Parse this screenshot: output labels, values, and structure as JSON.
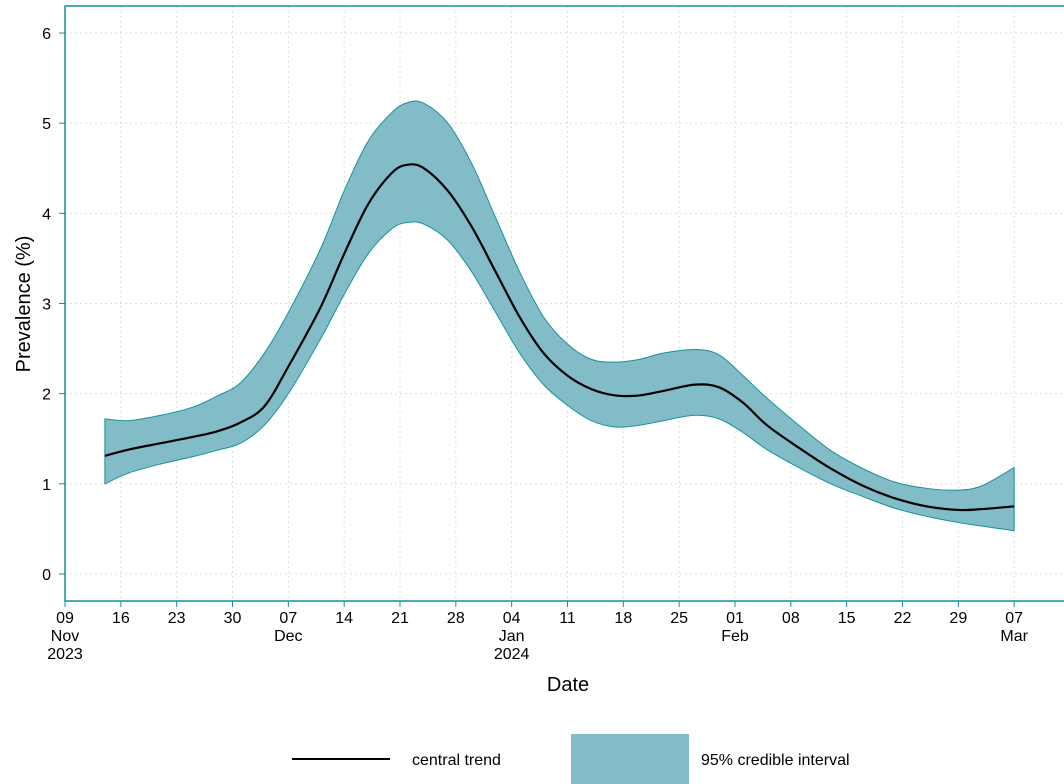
{
  "chart_data": {
    "type": "area",
    "xlabel": "Date",
    "ylabel": "Prevalence (%)",
    "ylim": [
      -0.3,
      6.3
    ],
    "xlim": [
      "2023-11-09",
      "2024-03-14"
    ],
    "x_ticks": [
      {
        "date": "2023-11-09",
        "line1": "09",
        "line2": "Nov",
        "line3": "2023"
      },
      {
        "date": "2023-11-16",
        "line1": "16",
        "line2": "",
        "line3": ""
      },
      {
        "date": "2023-11-23",
        "line1": "23",
        "line2": "",
        "line3": ""
      },
      {
        "date": "2023-11-30",
        "line1": "30",
        "line2": "",
        "line3": ""
      },
      {
        "date": "2023-12-07",
        "line1": "07",
        "line2": "Dec",
        "line3": ""
      },
      {
        "date": "2023-12-14",
        "line1": "14",
        "line2": "",
        "line3": ""
      },
      {
        "date": "2023-12-21",
        "line1": "21",
        "line2": "",
        "line3": ""
      },
      {
        "date": "2023-12-28",
        "line1": "28",
        "line2": "",
        "line3": ""
      },
      {
        "date": "2024-01-04",
        "line1": "04",
        "line2": "Jan",
        "line3": "2024"
      },
      {
        "date": "2024-01-11",
        "line1": "11",
        "line2": "",
        "line3": ""
      },
      {
        "date": "2024-01-18",
        "line1": "18",
        "line2": "",
        "line3": ""
      },
      {
        "date": "2024-01-25",
        "line1": "25",
        "line2": "",
        "line3": ""
      },
      {
        "date": "2024-02-01",
        "line1": "01",
        "line2": "Feb",
        "line3": ""
      },
      {
        "date": "2024-02-08",
        "line1": "08",
        "line2": "",
        "line3": ""
      },
      {
        "date": "2024-02-15",
        "line1": "15",
        "line2": "",
        "line3": ""
      },
      {
        "date": "2024-02-22",
        "line1": "22",
        "line2": "",
        "line3": ""
      },
      {
        "date": "2024-02-29",
        "line1": "29",
        "line2": "",
        "line3": ""
      },
      {
        "date": "2024-03-07",
        "line1": "07",
        "line2": "Mar",
        "line3": ""
      }
    ],
    "y_ticks": [
      0,
      1,
      2,
      3,
      4,
      5,
      6
    ],
    "x": [
      "2023-11-14",
      "2023-11-17",
      "2023-11-21",
      "2023-11-25",
      "2023-11-28",
      "2023-12-01",
      "2023-12-04",
      "2023-12-07",
      "2023-12-11",
      "2023-12-14",
      "2023-12-17",
      "2023-12-20",
      "2023-12-22",
      "2023-12-24",
      "2023-12-27",
      "2023-12-30",
      "2024-01-02",
      "2024-01-05",
      "2024-01-08",
      "2024-01-11",
      "2024-01-14",
      "2024-01-17",
      "2024-01-20",
      "2024-01-23",
      "2024-01-27",
      "2024-01-30",
      "2024-02-02",
      "2024-02-05",
      "2024-02-09",
      "2024-02-13",
      "2024-02-17",
      "2024-02-21",
      "2024-02-25",
      "2024-02-29",
      "2024-03-03",
      "2024-03-07"
    ],
    "series": [
      {
        "name": "central trend",
        "color": "#000000",
        "values": [
          1.31,
          1.38,
          1.45,
          1.52,
          1.58,
          1.68,
          1.86,
          2.3,
          2.95,
          3.55,
          4.1,
          4.45,
          4.54,
          4.5,
          4.25,
          3.85,
          3.35,
          2.85,
          2.45,
          2.2,
          2.05,
          1.98,
          1.98,
          2.03,
          2.1,
          2.07,
          1.9,
          1.65,
          1.4,
          1.17,
          0.98,
          0.84,
          0.75,
          0.71,
          0.72,
          0.75
        ]
      },
      {
        "name": "95% credible interval",
        "color": "#82bdc7",
        "edge_color": "#17909b",
        "lower": [
          1.0,
          1.12,
          1.22,
          1.3,
          1.37,
          1.45,
          1.65,
          2.0,
          2.6,
          3.1,
          3.55,
          3.83,
          3.9,
          3.88,
          3.7,
          3.35,
          2.9,
          2.45,
          2.1,
          1.87,
          1.7,
          1.63,
          1.65,
          1.7,
          1.76,
          1.72,
          1.57,
          1.38,
          1.18,
          1.0,
          0.86,
          0.73,
          0.64,
          0.57,
          0.53,
          0.48
        ],
        "upper": [
          1.72,
          1.7,
          1.76,
          1.85,
          1.97,
          2.12,
          2.45,
          2.9,
          3.6,
          4.25,
          4.8,
          5.12,
          5.23,
          5.22,
          5.0,
          4.55,
          3.95,
          3.35,
          2.85,
          2.55,
          2.38,
          2.35,
          2.38,
          2.45,
          2.49,
          2.43,
          2.2,
          1.95,
          1.65,
          1.37,
          1.17,
          1.02,
          0.95,
          0.93,
          0.98,
          1.18
        ]
      }
    ],
    "grid": true,
    "legend": {
      "position": "bottom",
      "entries": [
        {
          "label": "central trend",
          "kind": "line"
        },
        {
          "label": "95% credible interval",
          "kind": "patch"
        }
      ]
    }
  }
}
